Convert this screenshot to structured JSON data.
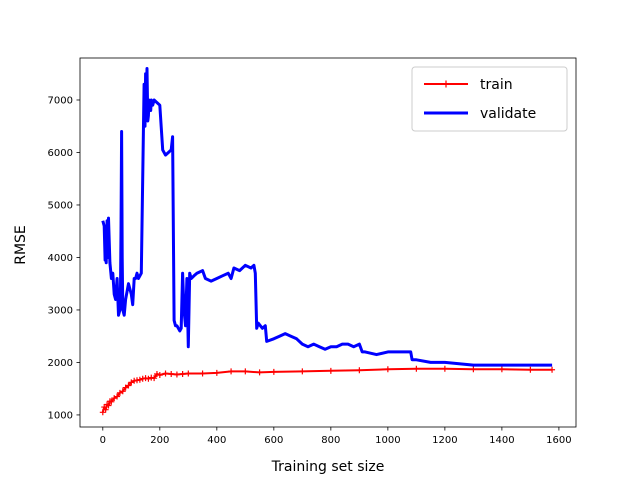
{
  "chart_data": {
    "type": "line",
    "title": "",
    "xlabel": "Training set size",
    "ylabel": "RMSE",
    "xlim": [
      -80,
      1660
    ],
    "ylim": [
      770,
      7800
    ],
    "xticks": [
      0,
      200,
      400,
      600,
      800,
      1000,
      1200,
      1400,
      1600
    ],
    "yticks": [
      1000,
      2000,
      3000,
      4000,
      5000,
      6000,
      7000
    ],
    "xtick_labels": [
      "0",
      "200",
      "400",
      "600",
      "800",
      "1000",
      "1200",
      "1400",
      "1600"
    ],
    "ytick_labels": [
      "1000",
      "2000",
      "3000",
      "4000",
      "5000",
      "6000",
      "7000"
    ],
    "grid": false,
    "legend_position": "top-right",
    "series": [
      {
        "name": "train",
        "color": "#ff0000",
        "line_width": 2,
        "marker": "plus",
        "x": [
          0,
          5,
          10,
          15,
          20,
          25,
          30,
          40,
          50,
          60,
          70,
          80,
          90,
          100,
          110,
          120,
          130,
          140,
          150,
          160,
          170,
          180,
          190,
          200,
          220,
          240,
          260,
          280,
          300,
          350,
          400,
          450,
          500,
          550,
          600,
          700,
          800,
          900,
          1000,
          1100,
          1200,
          1300,
          1400,
          1500,
          1576
        ],
        "y": [
          1050,
          1150,
          1100,
          1200,
          1180,
          1260,
          1250,
          1320,
          1350,
          1420,
          1450,
          1520,
          1560,
          1620,
          1650,
          1660,
          1670,
          1690,
          1700,
          1690,
          1710,
          1700,
          1780,
          1760,
          1790,
          1780,
          1770,
          1780,
          1790,
          1790,
          1800,
          1830,
          1830,
          1810,
          1820,
          1830,
          1840,
          1850,
          1870,
          1880,
          1880,
          1870,
          1870,
          1860,
          1860
        ]
      },
      {
        "name": "validate",
        "color": "#0000ff",
        "line_width": 3,
        "marker": "none",
        "x": [
          0,
          5,
          8,
          10,
          12,
          15,
          18,
          20,
          25,
          30,
          35,
          40,
          45,
          50,
          55,
          60,
          62,
          64,
          66,
          68,
          70,
          75,
          80,
          90,
          100,
          105,
          110,
          115,
          120,
          125,
          130,
          135,
          140,
          145,
          148,
          150,
          152,
          155,
          158,
          160,
          162,
          165,
          168,
          170,
          175,
          180,
          190,
          200,
          210,
          220,
          230,
          240,
          245,
          250,
          255,
          260,
          270,
          275,
          280,
          285,
          290,
          295,
          300,
          305,
          310,
          320,
          330,
          350,
          360,
          380,
          400,
          420,
          440,
          450,
          460,
          480,
          500,
          520,
          530,
          535,
          540,
          545,
          560,
          570,
          575,
          600,
          620,
          640,
          660,
          680,
          700,
          720,
          740,
          760,
          780,
          800,
          820,
          840,
          860,
          880,
          900,
          910,
          920,
          960,
          1000,
          1040,
          1060,
          1080,
          1085,
          1100,
          1150,
          1200,
          1300,
          1400,
          1500,
          1576
        ],
        "y": [
          4700,
          4600,
          3950,
          4400,
          3900,
          4700,
          4000,
          4750,
          3900,
          3600,
          3700,
          3300,
          3200,
          3600,
          2900,
          3000,
          3400,
          4500,
          6400,
          4000,
          3000,
          2900,
          3200,
          3500,
          3300,
          3100,
          3600,
          3600,
          3700,
          3600,
          3650,
          3700,
          5500,
          7300,
          6500,
          7500,
          6800,
          7600,
          6600,
          6700,
          7000,
          6900,
          6800,
          7000,
          6900,
          7000,
          6950,
          6900,
          6050,
          5950,
          6000,
          6050,
          6300,
          2800,
          2700,
          2700,
          2600,
          2650,
          3700,
          3000,
          2700,
          3600,
          2300,
          3700,
          3600,
          3650,
          3700,
          3750,
          3600,
          3550,
          3600,
          3650,
          3700,
          3600,
          3800,
          3750,
          3850,
          3800,
          3850,
          3700,
          2650,
          2750,
          2650,
          2700,
          2400,
          2450,
          2500,
          2550,
          2500,
          2450,
          2350,
          2300,
          2350,
          2300,
          2250,
          2300,
          2300,
          2350,
          2350,
          2300,
          2350,
          2200,
          2200,
          2150,
          2200,
          2200,
          2200,
          2200,
          2050,
          2050,
          2000,
          2000,
          1950,
          1950,
          1950,
          1950
        ]
      }
    ]
  }
}
